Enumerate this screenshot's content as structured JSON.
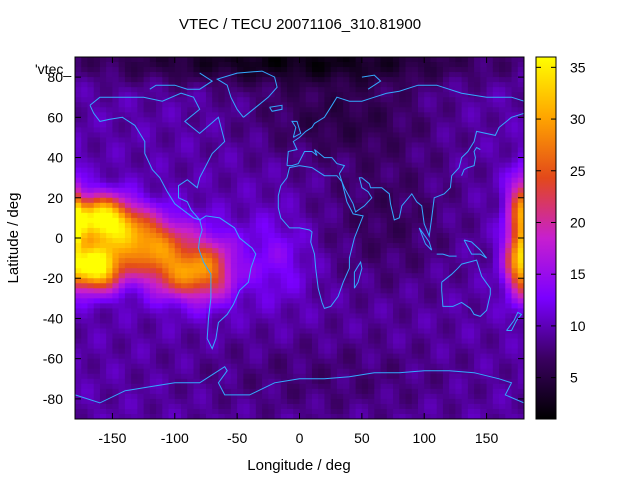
{
  "chart_data": {
    "type": "heatmap",
    "title": "VTEC / TECU 20071106_310.81900",
    "xlabel": "Longitude / deg",
    "ylabel": "Latitude / deg",
    "series_key": "'vtec_",
    "xlim": [
      -180,
      180
    ],
    "ylim": [
      -90,
      90
    ],
    "x_ticks": [
      -150,
      -100,
      -50,
      0,
      50,
      100,
      150
    ],
    "y_ticks": [
      80,
      60,
      40,
      20,
      0,
      -20,
      -40,
      -60,
      -80
    ],
    "colorbar": {
      "range": [
        1,
        36
      ],
      "ticks": [
        5,
        10,
        15,
        20,
        25,
        30,
        35
      ],
      "palette": [
        "#000000",
        "#3a0060",
        "#7a00ff",
        "#c71fcf",
        "#e3491a",
        "#ffa500",
        "#ffff00"
      ]
    },
    "features": [
      {
        "name": "equatorial anomaly west",
        "lon": -160,
        "lat": 10,
        "value": 34
      },
      {
        "name": "equatorial anomaly south-west",
        "lon": -165,
        "lat": -15,
        "value": 36
      },
      {
        "name": "equatorial anomaly east edge",
        "lon": 178,
        "lat": -12,
        "value": 32
      },
      {
        "name": "northern polar minimum",
        "lon": -10,
        "lat": 82,
        "value": 2
      }
    ],
    "coastlines": true,
    "grid": false
  }
}
